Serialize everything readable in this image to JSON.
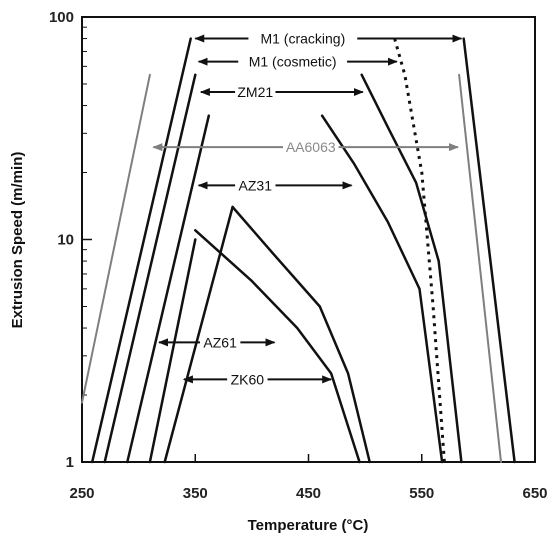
{
  "chart_data": {
    "type": "line",
    "xlabel": "Temperature (°C)",
    "ylabel": "Extrusion Speed (m/min)",
    "xlim": [
      250,
      650
    ],
    "ylim": [
      1,
      100
    ],
    "yscale": "log",
    "x_ticks": [
      250,
      350,
      450,
      550,
      650
    ],
    "x_tick_labels": [
      "250",
      "350",
      "450",
      "550",
      "650"
    ],
    "y_ticks": [
      1,
      10,
      100
    ],
    "y_tick_labels": [
      "1",
      "10",
      "100"
    ],
    "grid": false,
    "legend": "none",
    "series": [
      {
        "color": "#7f7f7f",
        "dash": "",
        "width": 2,
        "points": [
          [
            250,
            1.85
          ],
          [
            310,
            55
          ]
        ]
      },
      {
        "color": "#7f7f7f",
        "dash": "",
        "width": 2,
        "points": [
          [
            583,
            55
          ],
          [
            620,
            1
          ]
        ]
      },
      {
        "color": "#111111",
        "dash": "",
        "width": 2.5,
        "points": [
          [
            259,
            1
          ],
          [
            346,
            80
          ]
        ]
      },
      {
        "color": "#111111",
        "dash": "",
        "width": 2.5,
        "points": [
          [
            587,
            80
          ],
          [
            632,
            1
          ]
        ]
      },
      {
        "color": "#111111",
        "dash": "",
        "width": 2.5,
        "points": [
          [
            270,
            1
          ],
          [
            350,
            55
          ]
        ]
      },
      {
        "color": "#111111",
        "dash": "",
        "width": 2.5,
        "points": [
          [
            290,
            1
          ],
          [
            362,
            36
          ]
        ]
      },
      {
        "color": "#111111",
        "dash": "",
        "width": 2.5,
        "points": [
          [
            310,
            1
          ],
          [
            350,
            10
          ]
        ]
      },
      {
        "color": "#111111",
        "dash": "",
        "width": 2.5,
        "points": [
          [
            323,
            1
          ],
          [
            383,
            14
          ]
        ]
      },
      {
        "color": "#111111",
        "dash": "",
        "width": 2.5,
        "points": [
          [
            383,
            14
          ],
          [
            420,
            8.5
          ],
          [
            460,
            5
          ],
          [
            485,
            2.5
          ],
          [
            504,
            1
          ]
        ]
      },
      {
        "color": "#111111",
        "dash": "",
        "width": 2.5,
        "points": [
          [
            350,
            11
          ],
          [
            400,
            6.5
          ],
          [
            440,
            4
          ],
          [
            470,
            2.5
          ],
          [
            495,
            1
          ]
        ]
      },
      {
        "color": "#111111",
        "dash": "",
        "width": 2.5,
        "points": [
          [
            462,
            36
          ],
          [
            490,
            22
          ],
          [
            520,
            12
          ],
          [
            548,
            6
          ],
          [
            568,
            1
          ]
        ]
      },
      {
        "color": "#111111",
        "dash": "",
        "width": 2.5,
        "points": [
          [
            497,
            55
          ],
          [
            520,
            32
          ],
          [
            545,
            18
          ],
          [
            565,
            8
          ],
          [
            585,
            1
          ]
        ]
      },
      {
        "color": "#111111",
        "dash": "3,5",
        "width": 3,
        "points": [
          [
            526,
            80
          ],
          [
            535,
            55
          ],
          [
            550,
            20
          ],
          [
            560,
            5
          ],
          [
            570,
            1
          ]
        ]
      }
    ],
    "annotations": [
      {
        "text": "M1 (cracking)",
        "x": 445,
        "y": 80,
        "arrow_from": 350,
        "arrow_to": 585,
        "color": "#111111"
      },
      {
        "text": "M1 (cosmetic)",
        "x": 436,
        "y": 63,
        "arrow_from": 353,
        "arrow_to": 528,
        "color": "#111111"
      },
      {
        "text": "ZM21",
        "x": 403,
        "y": 46,
        "arrow_from": 355,
        "arrow_to": 498,
        "color": "#111111"
      },
      {
        "text": "AA6063",
        "x": 452,
        "y": 26,
        "arrow_from": 313,
        "arrow_to": 582,
        "color": "#7f7f7f"
      },
      {
        "text": "AZ31",
        "x": 403,
        "y": 17.5,
        "arrow_from": 353,
        "arrow_to": 488,
        "color": "#111111"
      },
      {
        "text": "AZ61",
        "x": 372,
        "y": 3.45,
        "arrow_from": 318,
        "arrow_to": 420,
        "color": "#111111"
      },
      {
        "text": "ZK60",
        "x": 396,
        "y": 2.35,
        "arrow_from": 340,
        "arrow_to": 470,
        "color": "#111111"
      }
    ]
  }
}
